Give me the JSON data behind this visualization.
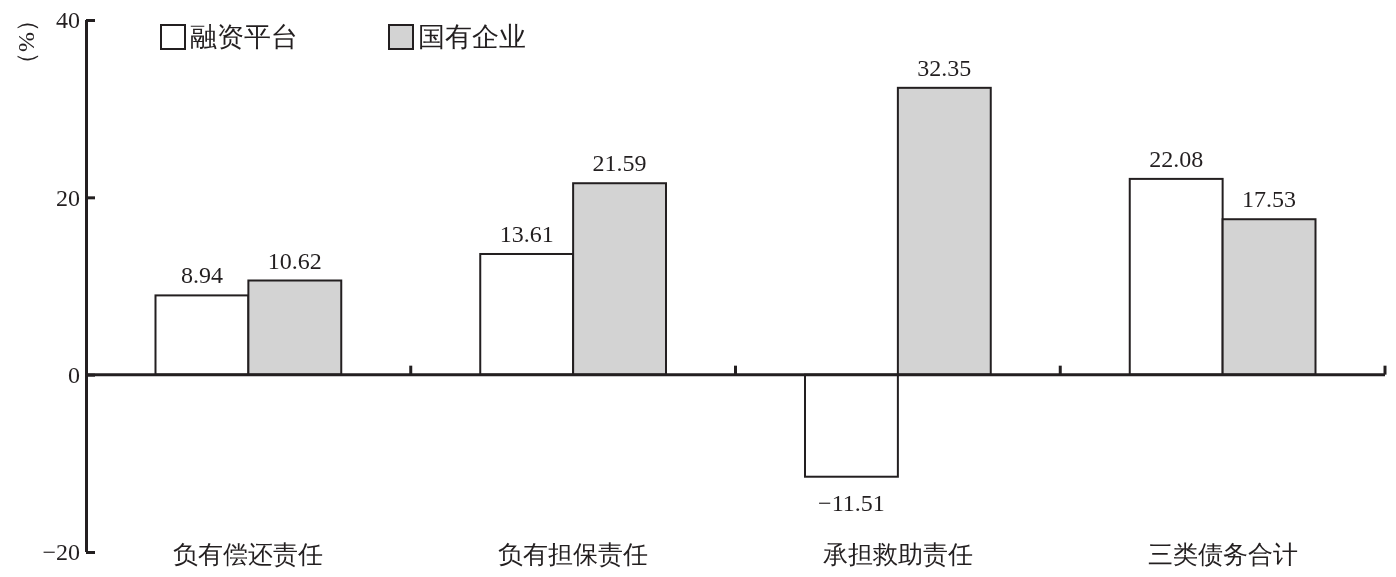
{
  "chart_data": {
    "type": "bar",
    "categories": [
      "负有偿还责任",
      "负有担保责任",
      "承担救助责任",
      "三类债务合计"
    ],
    "series": [
      {
        "name": "融资平台",
        "color": "#ffffff",
        "values": [
          8.94,
          13.61,
          -11.51,
          22.08
        ]
      },
      {
        "name": "国有企业",
        "color": "#d3d3d3",
        "values": [
          10.62,
          21.59,
          32.35,
          17.53
        ]
      }
    ],
    "ylabel": "（%）",
    "ylim": [
      -20,
      40
    ],
    "yticks": [
      -20,
      0,
      20,
      40
    ],
    "legend": "top left",
    "data_labels": true
  }
}
